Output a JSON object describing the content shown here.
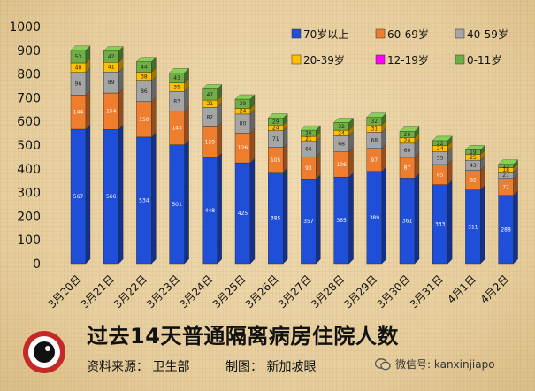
{
  "chart_data": {
    "type": "bar",
    "stacked": true,
    "title": "过去14天普通隔离病房住院人数",
    "categories": [
      "3月20日",
      "3月21日",
      "3月22日",
      "3月23日",
      "3月24日",
      "3月25日",
      "3月26日",
      "3月27日",
      "3月28日",
      "3月29日",
      "3月30日",
      "3月31日",
      "4月1日",
      "4月2日"
    ],
    "series": [
      {
        "name": "70岁以上",
        "color": "#1f4fd8",
        "values": [
          567,
          566,
          534,
          501,
          448,
          425,
          385,
          357,
          365,
          389,
          361,
          333,
          311,
          288
        ]
      },
      {
        "name": "60-69岁",
        "color": "#ee7d2e",
        "values": [
          144,
          154,
          150,
          143,
          129,
          126,
          105,
          93,
          106,
          97,
          87,
          85,
          82,
          71
        ]
      },
      {
        "name": "40-59岁",
        "color": "#a5a5a5",
        "values": [
          96,
          89,
          86,
          83,
          82,
          80,
          71,
          66,
          68,
          68,
          60,
          55,
          43,
          27
        ]
      },
      {
        "name": "20-39岁",
        "color": "#ffc000",
        "values": [
          40,
          41,
          38,
          35,
          31,
          24,
          24,
          21,
          24,
          31,
          24,
          24,
          25,
          18
        ]
      },
      {
        "name": "12-19岁",
        "color": "#ff00ff",
        "values": [
          0,
          0,
          0,
          0,
          0,
          0,
          0,
          0,
          0,
          0,
          0,
          0,
          0,
          0
        ]
      },
      {
        "name": "0-11岁",
        "color": "#70ad47",
        "values": [
          53,
          47,
          44,
          43,
          47,
          39,
          29,
          26,
          32,
          32,
          26,
          22,
          19,
          15
        ]
      }
    ],
    "ylim": [
      0,
      1000
    ],
    "yticks": [
      0,
      100,
      200,
      300,
      400,
      500,
      600,
      700,
      800,
      900,
      1000
    ],
    "legend_position": "top-right",
    "grid": false
  },
  "footer": {
    "source": "资料来源： 卫生部",
    "maker": "制图： 新加坡眼",
    "wechat": "微信号: kanxinjiapo"
  },
  "logo_text": "新加坡眼",
  "colors": {
    "background": "#e9d3a6"
  }
}
